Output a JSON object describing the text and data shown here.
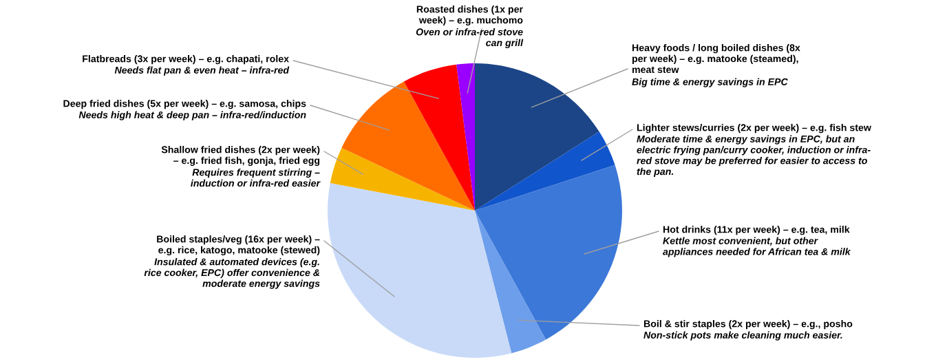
{
  "chart_data": {
    "type": "pie",
    "categories": [
      "Heavy foods / long boiled dishes (8x\nper week) – e.g. matooke (steamed),\nmeat stew",
      "Lighter stews/curries (2x per week) – e.g. fish stew",
      "Hot drinks (11x per week) – e.g. tea, milk",
      "Boil & stir staples (2x per week) – e.g., posho",
      "Boiled staples/veg (16x per week) –\ne.g. rice, katogo, matooke (stewed)",
      "Shallow fried dishes (2x per week)\n– e.g. fried fish, gonja, fried egg",
      "Deep fried dishes (5x per week) – e.g. samosa, chips",
      "Flatbreads (3x per week) – e.g. chapati, rolex",
      "Roasted dishes (1x per\nweek) – e.g. muchomo"
    ],
    "values": [
      16,
      4,
      22,
      4,
      32,
      4,
      10,
      6,
      2
    ],
    "colors": [
      "#1c4587",
      "#1155cc",
      "#3c78d8",
      "#6d9eeb",
      "#c9daf8",
      "#f6b400",
      "#ff6d01",
      "#ff0000",
      "#9900ff"
    ],
    "annotations": [
      "Big time & energy savings in EPC",
      "Moderate time & energy savings in EPC, but an\nelectric frying pan/curry cooker, induction or infra-\nred stove may be preferred for easier to access to\nthe pan.",
      "Kettle most convenient, but other\nappliances needed for African tea & milk",
      "Non-stick pots make cleaning much easier.",
      "Insulated & automated devices (e.g.\nrice cooker, EPC) offer convenience &\nmoderate energy savings",
      "Requires frequent stirring –\ninduction or infra-red easier",
      "Needs high heat & deep pan – infra-red/induction",
      "Needs flat pan & even heat – infra-red",
      "Oven or infra-red stove\ncan grill"
    ]
  }
}
